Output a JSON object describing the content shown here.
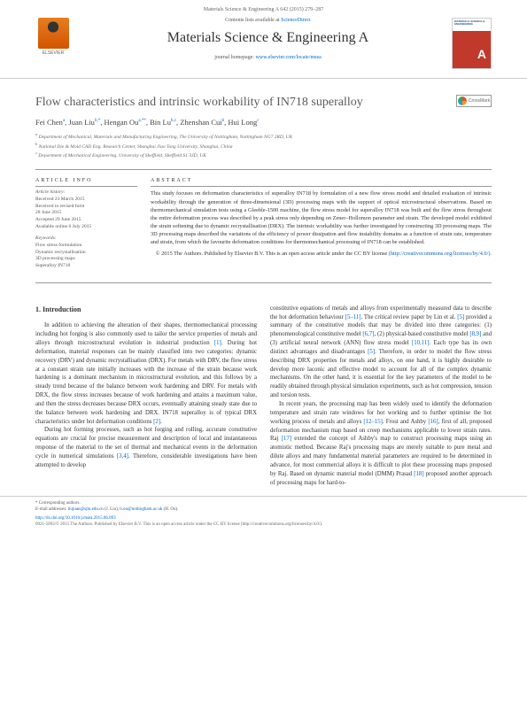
{
  "top_meta": "Materials Science & Engineering A 642 (2015) 279–287",
  "header": {
    "contents_prefix": "Contents lists available at ",
    "contents_link": "ScienceDirect",
    "journal": "Materials Science & Engineering A",
    "homepage_prefix": "journal homepage: ",
    "homepage_link": "www.elsevier.com/locate/msea",
    "publisher": "ELSEVIER"
  },
  "article": {
    "title": "Flow characteristics and intrinsic workability of IN718 superalloy",
    "crossmark": "CrossMark",
    "authors_html": "Fei Chen<sup>a</sup>, Juan Liu<sup>b,*</sup>, Hengan Ou<sup>a,**</sup>, Bin Lu<sup>b,c</sup>, Zhenshan Cui<sup>b</sup>, Hui Long<sup>c</sup>",
    "affiliations": [
      "a Department of Mechanical, Materials and Manufacturing Engineering, The University of Nottingham, Nottingham NG7 2RD, UK",
      "b National Die & Mold CAD Eng. Research Center, Shanghai Jiao Tong University, Shanghai, China",
      "c Department of Mechanical Engineering, University of Sheffield, Sheffield S1 3JD, UK"
    ]
  },
  "info": {
    "heading": "ARTICLE INFO",
    "history_title": "Article history:",
    "history": [
      "Received 23 March 2015",
      "Received in revised form",
      "28 June 2015",
      "Accepted 29 June 2015",
      "Available online 6 July 2015"
    ],
    "keywords_title": "Keywords:",
    "keywords": [
      "Flow stress formulation",
      "Dynamic recrystallisation",
      "3D processing maps",
      "Superalloy IN718"
    ]
  },
  "abstract": {
    "heading": "ABSTRACT",
    "text": "This study focuses on deformation characteristics of superalloy IN718 by formulation of a new flow stress model and detailed evaluation of intrinsic workability through the generation of three-dimensional (3D) processing maps with the support of optical microstructural observations. Based on thermomechanical simulation tests using a Gleeble-1500 machine, the flow stress model for superalloy IN718 was built and the flow stress throughout the entire deformation process was described by a peak stress only depending on Zener–Hollomon parameter and strain. The developed model exhibited the strain softening due to dynamic recrystallisation (DRX). The intrinsic workability was further investigated by constructing 3D processing maps. The 3D processing maps described the variations of the efficiency of power dissipation and flow instability domains as a function of strain rate, temperature and strain, from which the favourite deformation conditions for thermomechanical processing of IN718 can be established.",
    "copyright": "© 2015 The Authors. Published by Elsevier B.V. This is an open access article under the CC BY license",
    "license_url": "(http://creativecommons.org/licenses/by/4.0/)."
  },
  "body": {
    "section_num": "1.",
    "section_title": "Introduction",
    "col1_p1": "In addition to achieving the alteration of their shapes, thermomechanical processing including hot forging is also commonly used to tailor the service properties of metals and alloys through microstructural evolution in industrial production [1]. During hot deformation, material responses can be mainly classified into two categories: dynamic recovery (DRV) and dynamic recrystallisation (DRX). For metals with DRV, the flow stress at a constant strain rate initially increases with the increase of the strain because work hardening is a dominant mechanism in microstructural evolution, and this follows by a steady trend because of the balance between work hardening and DRV. For metals with DRX, the flow stress increases because of work hardening and attains a maximum value, and then the stress decreases because DRX occurs, eventually attaining steady state due to the balance between work hardening and DRX. IN718 superalloy is of typical DRX characteristics under hot deformation conditions [2].",
    "col1_p2": "During hot forming processes, such as hot forging and rolling, accurate constitutive equations are crucial for precise measurement and description of local and instantaneous response of the material to the set of thermal and mechanical events in the deformation cycle in numerical simulations [3,4]. Therefore, considerable investigations have been attempted to develop",
    "col2_p1": "constitutive equations of metals and alloys from experimentally measured data to describe the hot deformation behaviour [5–11]. The critical review paper by Lin et al. [5] provided a summary of the constitutive models that may be divided into three categories: (1) phenomenological constitutive model [6,7], (2) physical-based constitutive model [8,9] and (3) artificial neural network (ANN) flow stress model [10,11]. Each type has its own distinct advantages and disadvantages [5]. Therefore, in order to model the flow stress describing DRX properties for metals and alloys, on one hand, it is highly desirable to develop more laconic and effective model to account for all of the complex dynamic mechanisms. On the other hand, it is essential for the key parameters of the model to be readily obtained through physical simulation experiments, such as hot compression, tension and torsion tests.",
    "col2_p2": "In recent years, the processing map has been widely used to identify the deformation temperature and strain rate windows for hot working and to further optimise the hot working process of metals and alloys [12–15]. Frost and Ashby [16], first of all, proposed deformation mechanism map based on creep mechanisms applicable to lower strain rates. Raj [17] extended the concept of Ashby's map to construct processing maps using an atomistic method. Because Raj's processing maps are merely suitable to pure metal and dilute alloys and many fundamental material parameters are required to be determined in advance, for most commercial alloys it is difficult to plot these processing maps proposed by Raj. Based on dynamic material model (DMM) Prasad [18] proposed another approach of processing maps for hard-to-"
  },
  "footer": {
    "corr_label": "* Corresponding authors.",
    "email_label": "E-mail addresses: ",
    "email1": "liujuan@sjtu.edu.cn",
    "email1_who": " (J. Liu), ",
    "email2": "h.ou@nottingham.ac.uk",
    "email2_who": " (H. Ou).",
    "doi": "http://dx.doi.org/10.1016/j.msea.2015.06.093",
    "copyright": "0921-5093/© 2015 The Authors. Published by Elsevier B.V. This is an open access article under the CC BY license (http://creativecommons.org/licenses/by/4.0/)."
  }
}
